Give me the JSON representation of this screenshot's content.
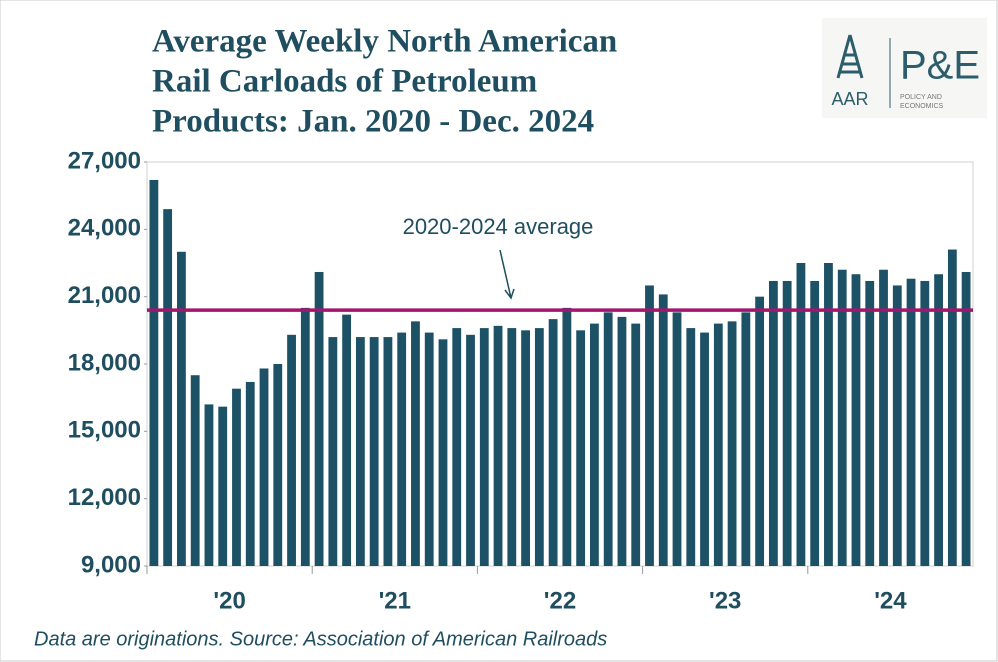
{
  "chart_data": {
    "type": "bar",
    "title": [
      "Average Weekly North American",
      "Rail Carloads of Petroleum",
      "Products: Jan. 2020 - Dec. 2024"
    ],
    "logo": {
      "left": "AAR",
      "right": "P&E",
      "subtitle": [
        "POLICY AND",
        "ECONOMICS"
      ]
    },
    "categories": [
      null,
      null,
      null,
      null,
      null,
      null,
      "'20",
      null,
      null,
      null,
      null,
      null,
      null,
      null,
      null,
      null,
      null,
      null,
      "'21",
      null,
      null,
      null,
      null,
      null,
      null,
      null,
      null,
      null,
      null,
      null,
      "'22",
      null,
      null,
      null,
      null,
      null,
      null,
      null,
      null,
      null,
      null,
      null,
      "'23",
      null,
      null,
      null,
      null,
      null,
      null,
      null,
      null,
      null,
      null,
      null,
      "'24",
      null,
      null,
      null,
      null,
      null
    ],
    "values": [
      26200,
      24900,
      23000,
      17500,
      16200,
      16100,
      16900,
      17200,
      17800,
      18000,
      19300,
      20500,
      22100,
      19200,
      20200,
      19200,
      19200,
      19200,
      19400,
      19900,
      19400,
      19100,
      19600,
      19300,
      19600,
      19700,
      19600,
      19500,
      19600,
      20000,
      20500,
      19500,
      19800,
      20300,
      20100,
      19800,
      21500,
      21100,
      20300,
      19600,
      19400,
      19800,
      19900,
      20300,
      21000,
      21700,
      21700,
      22500,
      21700,
      22500,
      22200,
      22000,
      21700,
      22200,
      21500,
      21800,
      21700,
      22000,
      23100,
      22100
    ],
    "color": "#1d5165",
    "average": 20400,
    "average_label": "2020-2024 average",
    "average_color": "#a3156f",
    "ylim": [
      9000,
      27000
    ],
    "yticks": [
      {
        "value": 9000,
        "label": "9,000"
      },
      {
        "value": 12000,
        "label": "12,000"
      },
      {
        "value": 15000,
        "label": "15,000"
      },
      {
        "value": 18000,
        "label": "18,000"
      },
      {
        "value": 21000,
        "label": "21,000"
      },
      {
        "value": 24000,
        "label": "24,000"
      },
      {
        "value": 27000,
        "label": "27,000"
      }
    ],
    "note": "Data are originations. Source: Association of American Railroads"
  }
}
